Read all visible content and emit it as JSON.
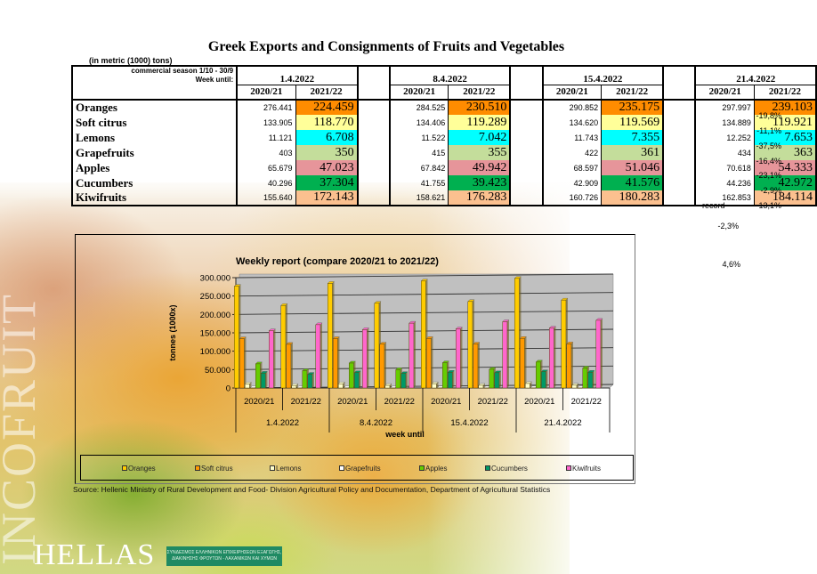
{
  "title": "Greek Exports and Consignments of Fruits and Vegetables",
  "units_note": "(in metric (1000) tons)",
  "table": {
    "season_label": "commercial season 1/10 - 30/9",
    "week_label": "Week until:",
    "weeks": [
      "1.4.2022",
      "8.4.2022",
      "15.4.2022",
      "21.4.2022"
    ],
    "year_headers": [
      "2020/21",
      "2021/22"
    ],
    "rows": [
      {
        "product": "Oranges",
        "color": "#ff8c00",
        "values": [
          [
            "276.441",
            "224.459"
          ],
          [
            "284.525",
            "230.510"
          ],
          [
            "290.852",
            "235.175"
          ],
          [
            "297.997",
            "239.103"
          ]
        ],
        "note": "",
        "change": "-19,8%"
      },
      {
        "product": "Soft citrus",
        "color": "#ffff99",
        "values": [
          [
            "133.905",
            "118.770"
          ],
          [
            "134.406",
            "119.289"
          ],
          [
            "134.620",
            "119.569"
          ],
          [
            "134.889",
            "119.921"
          ]
        ],
        "note": "",
        "change": "-11,1%"
      },
      {
        "product": "Lemons",
        "color": "#00ffff",
        "values": [
          [
            "11.121",
            "6.708"
          ],
          [
            "11.522",
            "7.042"
          ],
          [
            "11.743",
            "7.355"
          ],
          [
            "12.252",
            "7.653"
          ]
        ],
        "note": "",
        "change": "-37,5%"
      },
      {
        "product": "Grapefruits",
        "color": "#c4dd9b",
        "values": [
          [
            "403",
            "350"
          ],
          [
            "415",
            "355"
          ],
          [
            "422",
            "361"
          ],
          [
            "434",
            "363"
          ]
        ],
        "note": "",
        "change": "-16,4%"
      },
      {
        "product": "Apples",
        "color": "#e6959a",
        "values": [
          [
            "65.679",
            "47.023"
          ],
          [
            "67.842",
            "49.942"
          ],
          [
            "68.597",
            "51.046"
          ],
          [
            "70.618",
            "54.333"
          ]
        ],
        "note": "",
        "change": "-23,1%"
      },
      {
        "product": "Cucumbers",
        "color": "#00b050",
        "values": [
          [
            "40.296",
            "37.304"
          ],
          [
            "41.755",
            "39.423"
          ],
          [
            "42.909",
            "41.576"
          ],
          [
            "44.236",
            "42.972"
          ]
        ],
        "note": "",
        "change": "-2,9%"
      },
      {
        "product": "Kiwifruits",
        "color": "#fbc08f",
        "values": [
          [
            "155.640",
            "172.143"
          ],
          [
            "158.621",
            "176.283"
          ],
          [
            "160.726",
            "180.283"
          ],
          [
            "162.853",
            "184.114"
          ]
        ],
        "note": "record",
        "change": "13,1%"
      }
    ],
    "extra_changes": [
      "-2,3%",
      "4,6%"
    ]
  },
  "chart_data": {
    "type": "bar",
    "title": "Weekly report (compare 2020/21 to 2021/22)",
    "xlabel": "week until",
    "ylabel": "tonnes (1000x)",
    "ylim": [
      0,
      300000
    ],
    "yticks": [
      "0",
      "50.000",
      "100.000",
      "150.000",
      "200.000",
      "250.000",
      "300.000"
    ],
    "ytick_values": [
      0,
      50000,
      100000,
      150000,
      200000,
      250000,
      300000
    ],
    "grid": true,
    "legend_position": "bottom",
    "group_labels": [
      "1.4.2022",
      "8.4.2022",
      "15.4.2022",
      "21.4.2022"
    ],
    "categories": [
      "2020/21",
      "2021/22",
      "2020/21",
      "2021/22",
      "2020/21",
      "2021/22",
      "2020/21",
      "2021/22"
    ],
    "series": [
      {
        "name": "Oranges",
        "color": "#ffcc00",
        "values": [
          276441,
          224459,
          284525,
          230510,
          290852,
          235175,
          297997,
          239103
        ]
      },
      {
        "name": "Soft citrus",
        "color": "#ff9900",
        "values": [
          133905,
          118770,
          134406,
          119289,
          134620,
          119569,
          134889,
          119921
        ]
      },
      {
        "name": "Lemons",
        "color": "#ffffcc",
        "values": [
          11121,
          6708,
          11522,
          7042,
          11743,
          7355,
          12252,
          7653
        ]
      },
      {
        "name": "Grapefruits",
        "color": "#ffffff",
        "values": [
          403,
          350,
          415,
          355,
          422,
          361,
          434,
          363
        ]
      },
      {
        "name": "Apples",
        "color": "#66cc00",
        "values": [
          65679,
          47023,
          67842,
          49942,
          68597,
          51046,
          70618,
          54333
        ]
      },
      {
        "name": "Cucumbers",
        "color": "#009966",
        "values": [
          40296,
          37304,
          41755,
          39423,
          42909,
          41576,
          44236,
          42972
        ]
      },
      {
        "name": "Kiwifruits",
        "color": "#ff66cc",
        "values": [
          155640,
          172143,
          158621,
          176283,
          160726,
          180283,
          162853,
          184114
        ]
      }
    ]
  },
  "source": "Source: Hellenic Ministry of Rural Development and Food- Division Agricultural Policy and Documentation, Department of Agricultural Statistics",
  "branding": {
    "watermark": "INCOFRUIT",
    "hellas": "HELLAS",
    "association_line1": "ΣΥΝΔΕΣΜΟΣ ΕΛΛΗΝΙΚΩΝ ΕΠΙΧΕΙΡΗΣΕΩΝ ΕΞΑΓΩΓΗΣ,",
    "association_line2": "ΔΙΑΚΙΝΗΣΗΣ ΦΡΟΥΤΩΝ - ΛΑΧΑΝΙΚΩΝ ΚΑΙ ΧΥΜΩΝ"
  }
}
